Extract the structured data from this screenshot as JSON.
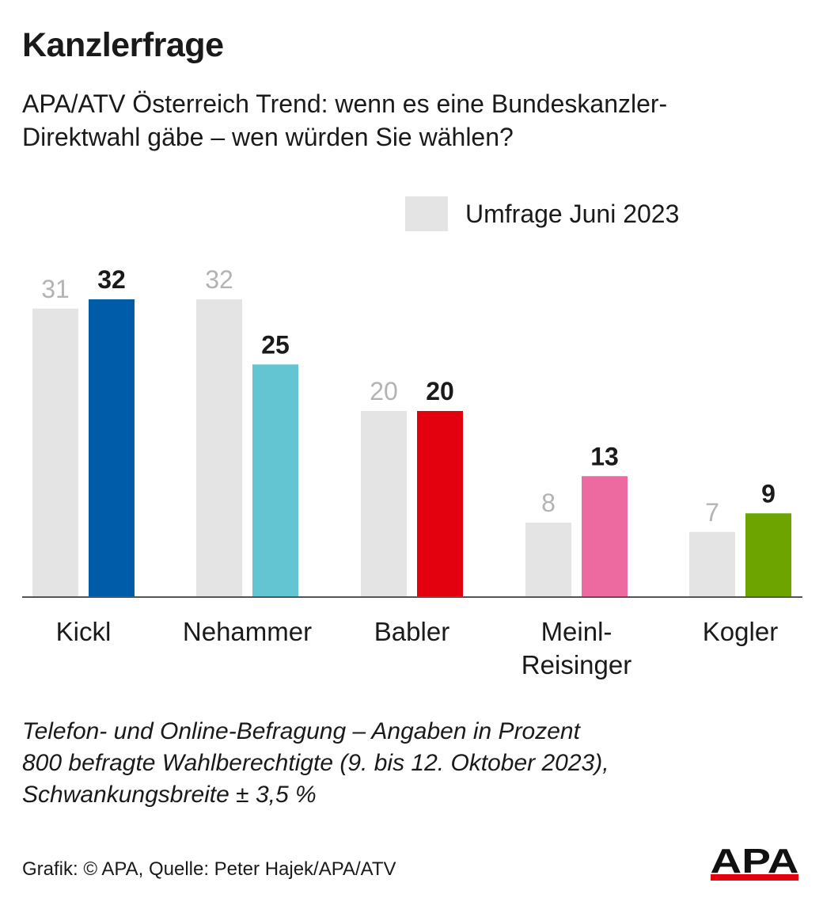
{
  "title": "Kanzlerfrage",
  "subtitle": [
    "APA/ATV Österreich Trend: wenn es eine Bundeskanzler-",
    "Direktwahl gäbe – wen würden Sie wählen?"
  ],
  "legend": {
    "label": "Umfrage Juni 2023",
    "color": "#e4e4e4"
  },
  "chart_data": {
    "type": "bar",
    "categories": [
      "Kickl",
      "Nehammer",
      "Babler",
      "Meinl-Reisinger",
      "Kogler"
    ],
    "category_lines": [
      [
        "Kickl"
      ],
      [
        "Nehammer"
      ],
      [
        "Babler"
      ],
      [
        "Meinl-",
        "Reisinger"
      ],
      [
        "Kogler"
      ]
    ],
    "series": [
      {
        "name": "Umfrage Juni 2023",
        "values": [
          31,
          32,
          20,
          8,
          7
        ],
        "colors": [
          "#e4e4e4",
          "#e4e4e4",
          "#e4e4e4",
          "#e4e4e4",
          "#e4e4e4"
        ],
        "label_color": "#b3b3b3"
      },
      {
        "values": [
          32,
          25,
          20,
          13,
          9
        ],
        "colors": [
          "#005ca9",
          "#63c5d2",
          "#e3000f",
          "#ec6aa0",
          "#6ea400"
        ],
        "label_color": "#1a1a1a"
      }
    ],
    "ylim": [
      0,
      34
    ],
    "grid": false,
    "legend_position": "top-right"
  },
  "notes": [
    "Telefon- und Online-Befragung – Angaben in Prozent",
    "800 befragte Wahlberechtigte (9. bis 12. Oktober 2023),",
    "Schwankungsbreite ± 3,5 %"
  ],
  "credit": "Grafik: © APA, Quelle: Peter Hajek/APA/ATV",
  "logo": {
    "text": "APA",
    "accent_color": "#e3000f"
  }
}
